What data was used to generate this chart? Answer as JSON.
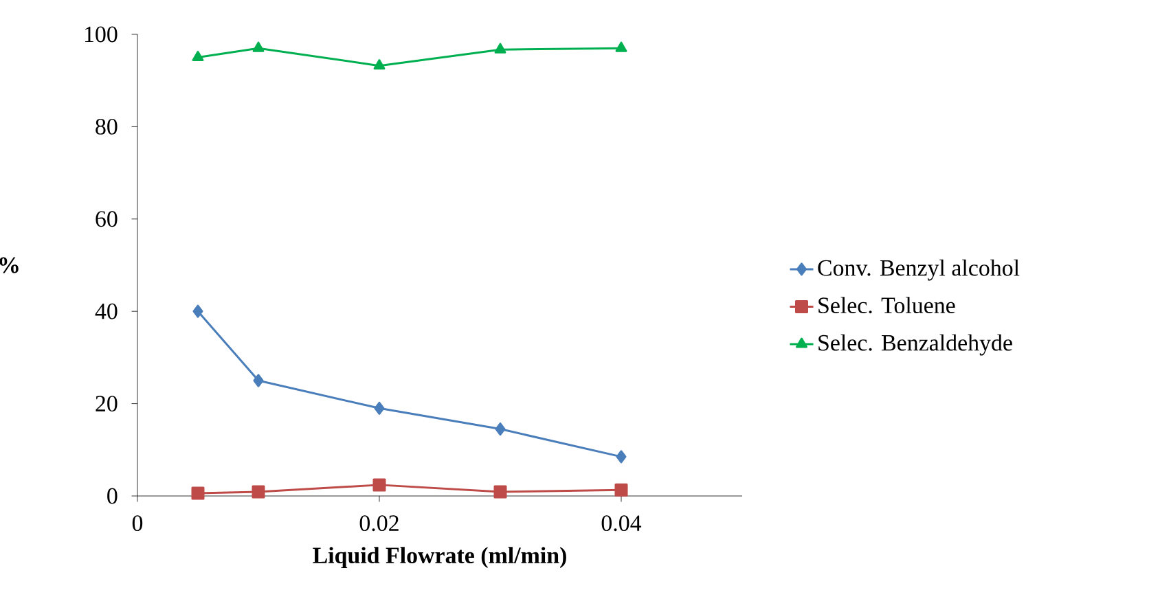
{
  "chart_data": {
    "type": "line",
    "xlabel": "Liquid Flowrate (ml/min)",
    "ylabel": "%",
    "xlim": [
      0,
      0.05
    ],
    "xticks": [
      0,
      0.02,
      0.04
    ],
    "ylim": [
      0,
      100
    ],
    "yticks": [
      0,
      20,
      40,
      60,
      80,
      100
    ],
    "grid": false,
    "legend": "right",
    "line_style": "solid",
    "series": [
      {
        "name": "Conv. Benzyl alcohol",
        "color": "#4a7ebb",
        "marker": "diamond",
        "x": [
          0.005,
          0.01,
          0.02,
          0.03,
          0.04
        ],
        "values": [
          40,
          25,
          19,
          14.5,
          8.5
        ]
      },
      {
        "name": "Selec. Toluene",
        "color": "#be4b48",
        "marker": "square",
        "x": [
          0.005,
          0.01,
          0.02,
          0.03,
          0.04
        ],
        "values": [
          0.6,
          0.9,
          2.4,
          0.9,
          1.3
        ]
      },
      {
        "name": "Selec. Benzaldehyde",
        "color": "#00b050",
        "marker": "triangle",
        "x": [
          0.005,
          0.01,
          0.02,
          0.03,
          0.04
        ],
        "values": [
          95,
          97,
          93.2,
          96.7,
          97
        ]
      }
    ]
  }
}
